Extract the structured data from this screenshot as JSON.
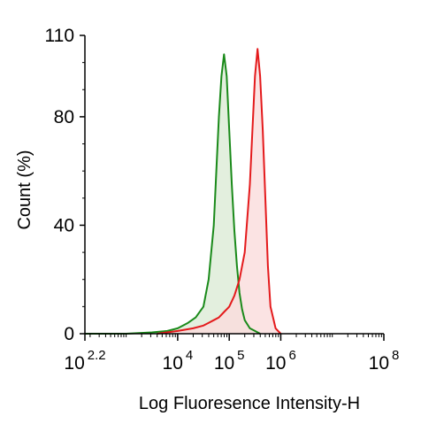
{
  "chart_data": {
    "type": "area",
    "title": "",
    "xlabel": "Log Fluoresence Intensity-H",
    "ylabel": "Count  (%)",
    "x_scale": "log10",
    "xlim": [
      2.2,
      8
    ],
    "ylim": [
      0,
      110
    ],
    "y_ticks": [
      {
        "value": 0,
        "label": "0"
      },
      {
        "value": 40,
        "label": "40"
      },
      {
        "value": 80,
        "label": "80"
      },
      {
        "value": 110,
        "label": "110"
      }
    ],
    "x_ticks": [
      {
        "value": 2.2,
        "base": "10",
        "exp": "2.2"
      },
      {
        "value": 4,
        "base": "10",
        "exp": "4"
      },
      {
        "value": 5,
        "base": "10",
        "exp": "5"
      },
      {
        "value": 6,
        "base": "10",
        "exp": "6"
      },
      {
        "value": 8,
        "base": "10",
        "exp": "8"
      }
    ],
    "grid": false,
    "legend": "none",
    "series": [
      {
        "color": "#1a8a1a",
        "fill": "#dcebd6",
        "x": [
          2.2,
          3.0,
          3.5,
          3.8,
          4.0,
          4.2,
          4.35,
          4.5,
          4.6,
          4.7,
          4.75,
          4.8,
          4.85,
          4.9,
          4.95,
          5.0,
          5.05,
          5.1,
          5.15,
          5.2,
          5.25,
          5.3,
          5.4,
          5.5,
          5.6
        ],
        "y": [
          0,
          0,
          0.5,
          1,
          2,
          4,
          6,
          10,
          20,
          40,
          60,
          80,
          95,
          103,
          95,
          75,
          55,
          38,
          25,
          15,
          9,
          5,
          2,
          1,
          0
        ]
      },
      {
        "color": "#e41a1c",
        "fill": "#fadcdc",
        "x": [
          3.6,
          4.0,
          4.3,
          4.5,
          4.6,
          4.7,
          4.8,
          4.9,
          5.0,
          5.1,
          5.2,
          5.3,
          5.4,
          5.45,
          5.5,
          5.55,
          5.6,
          5.65,
          5.7,
          5.75,
          5.8,
          5.9,
          6.0
        ],
        "y": [
          0,
          1,
          2,
          3,
          4,
          5,
          6,
          8,
          10,
          14,
          20,
          30,
          55,
          75,
          95,
          105,
          95,
          75,
          50,
          25,
          10,
          2,
          0
        ]
      }
    ]
  }
}
